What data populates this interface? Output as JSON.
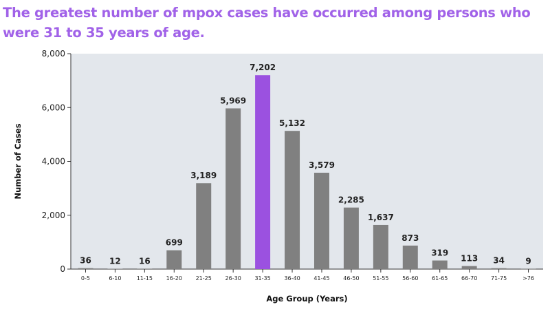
{
  "title": "The greatest number of mpox cases have occurred among persons who were 31 to 35 years of age.",
  "colors": {
    "title": "#a162e8",
    "bar": "#808080",
    "highlight": "#9b51e0",
    "plot_bg": "#e3e7ec"
  },
  "chart_data": {
    "type": "bar",
    "title": "The greatest number of mpox cases have occurred among persons who were 31 to 35 years of age.",
    "xlabel": "Age Group (Years)",
    "ylabel": "Number of Cases",
    "categories": [
      "0-5",
      "6-10",
      "11-15",
      "16-20",
      "21-25",
      "26-30",
      "31-35",
      "36-40",
      "41-45",
      "46-50",
      "51-55",
      "56-60",
      "61-65",
      "66-70",
      "71-75",
      ">76"
    ],
    "values": [
      36,
      12,
      16,
      699,
      3189,
      5969,
      7202,
      5132,
      3579,
      2285,
      1637,
      873,
      319,
      113,
      34,
      9
    ],
    "data_labels": [
      "36",
      "12",
      "16",
      "699",
      "3,189",
      "5,969",
      "7,202",
      "5,132",
      "3,579",
      "2,285",
      "1,637",
      "873",
      "319",
      "113",
      "34",
      "9"
    ],
    "highlight_category": "31-35",
    "ylim": [
      0,
      8000
    ],
    "yticks": [
      0,
      2000,
      4000,
      6000,
      8000
    ],
    "ytick_labels": [
      "0",
      "2,000",
      "4,000",
      "6,000",
      "8,000"
    ],
    "grid": false,
    "legend": "none"
  }
}
